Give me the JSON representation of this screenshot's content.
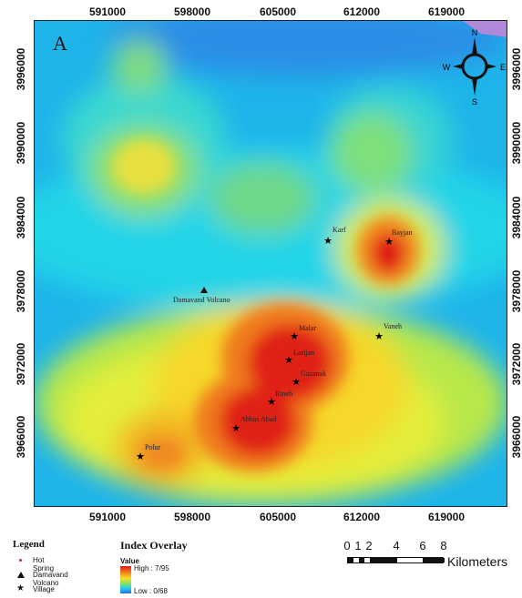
{
  "map": {
    "panel_letter": "A",
    "x_ticks": [
      "591000",
      "598000",
      "605000",
      "612000",
      "619000"
    ],
    "y_ticks": [
      "3996000",
      "3990000",
      "3984000",
      "3978000",
      "3972000",
      "3966000"
    ],
    "places": [
      {
        "name": "Karf",
        "type": "village"
      },
      {
        "name": "Bayjan",
        "type": "village"
      },
      {
        "name": "Damavand Volcano",
        "type": "volcano"
      },
      {
        "name": "Malar",
        "type": "village"
      },
      {
        "name": "Vaneh",
        "type": "village"
      },
      {
        "name": "Larijan",
        "type": "village"
      },
      {
        "name": "Gazanak",
        "type": "village"
      },
      {
        "name": "Rineh",
        "type": "village"
      },
      {
        "name": "Abbas Abad",
        "type": "village"
      },
      {
        "name": "Polur",
        "type": "village"
      }
    ],
    "compass": {
      "n": "N",
      "s": "S",
      "e": "E",
      "w": "W"
    }
  },
  "legend": {
    "title": "Legend",
    "items": [
      {
        "label": "Hot Spring",
        "icon": "dot-icon",
        "color": "#e02020"
      },
      {
        "label": "Damavand Volcano",
        "icon": "triangle-icon",
        "color": "#111111"
      },
      {
        "label": "Village",
        "icon": "star-icon",
        "color": "#111111"
      }
    ]
  },
  "overlay": {
    "title": "Index Overlay",
    "value_label": "Value",
    "high": "High : 7/95",
    "low": "Low : 0/68"
  },
  "scale": {
    "numbers": [
      "0",
      "1",
      "2",
      "4",
      "6",
      "8"
    ],
    "unit": "Kilometers"
  }
}
